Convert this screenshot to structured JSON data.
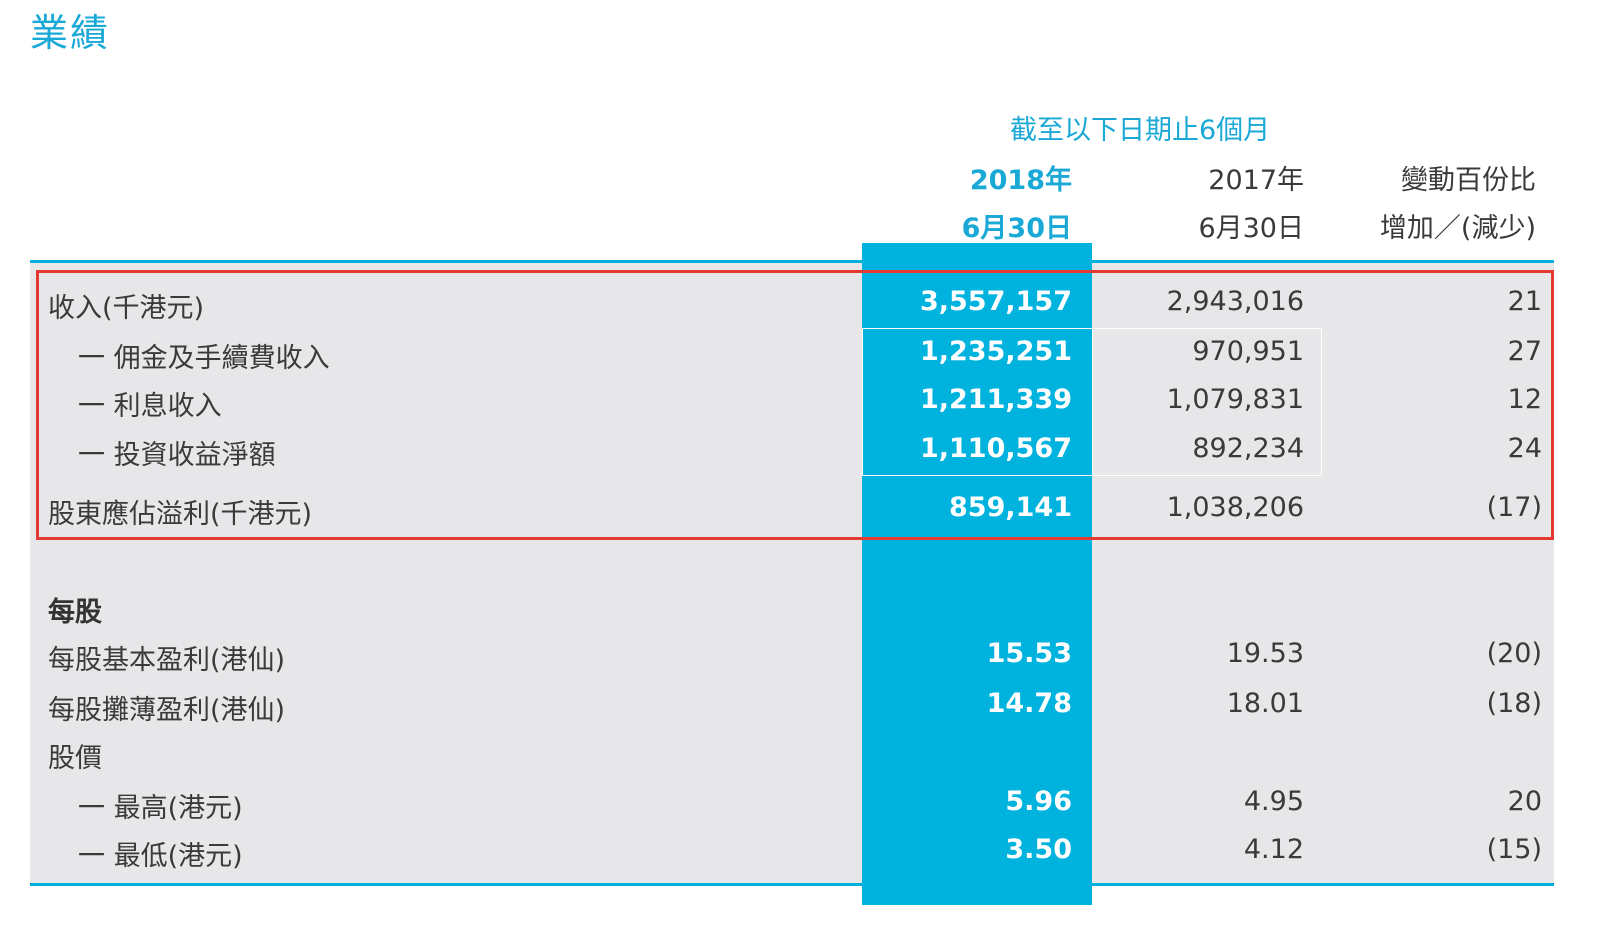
{
  "title": "業績",
  "header": {
    "period": "截至以下日期止6個月",
    "col_2018_year": "2018年",
    "col_2018_date": "6月30日",
    "col_2017_year": "2017年",
    "col_2017_date": "6月30日",
    "col_change_1": "變動百份比",
    "col_change_2": "增加／(減少)"
  },
  "rows": [
    {
      "label": "收入(千港元)",
      "v2018": "3,557,157",
      "v2017": "2,943,016",
      "change": "21"
    },
    {
      "label": "一 佣金及手續費收入",
      "v2018": "1,235,251",
      "v2017": "970,951",
      "change": "27"
    },
    {
      "label": "一 利息收入",
      "v2018": "1,211,339",
      "v2017": "1,079,831",
      "change": "12"
    },
    {
      "label": "一 投資收益淨額",
      "v2018": "1,110,567",
      "v2017": "892,234",
      "change": "24"
    },
    {
      "label": "股東應佔溢利(千港元)",
      "v2018": "859,141",
      "v2017": "1,038,206",
      "change": "(17)"
    },
    {
      "label": "每股",
      "v2018": "",
      "v2017": "",
      "change": ""
    },
    {
      "label": "每股基本盈利(港仙)",
      "v2018": "15.53",
      "v2017": "19.53",
      "change": "(20)"
    },
    {
      "label": "每股攤薄盈利(港仙)",
      "v2018": "14.78",
      "v2017": "18.01",
      "change": "(18)"
    },
    {
      "label": "股價",
      "v2018": "",
      "v2017": "",
      "change": ""
    },
    {
      "label": "一 最高(港元)",
      "v2018": "5.96",
      "v2017": "4.95",
      "change": "20"
    },
    {
      "label": "一 最低(港元)",
      "v2018": "3.50",
      "v2017": "4.12",
      "change": "(15)"
    }
  ],
  "colors": {
    "accent": "#1aa9d6",
    "column_fill": "#00b3df",
    "panel": "#e7e7e9",
    "highlight": "#e53935"
  }
}
